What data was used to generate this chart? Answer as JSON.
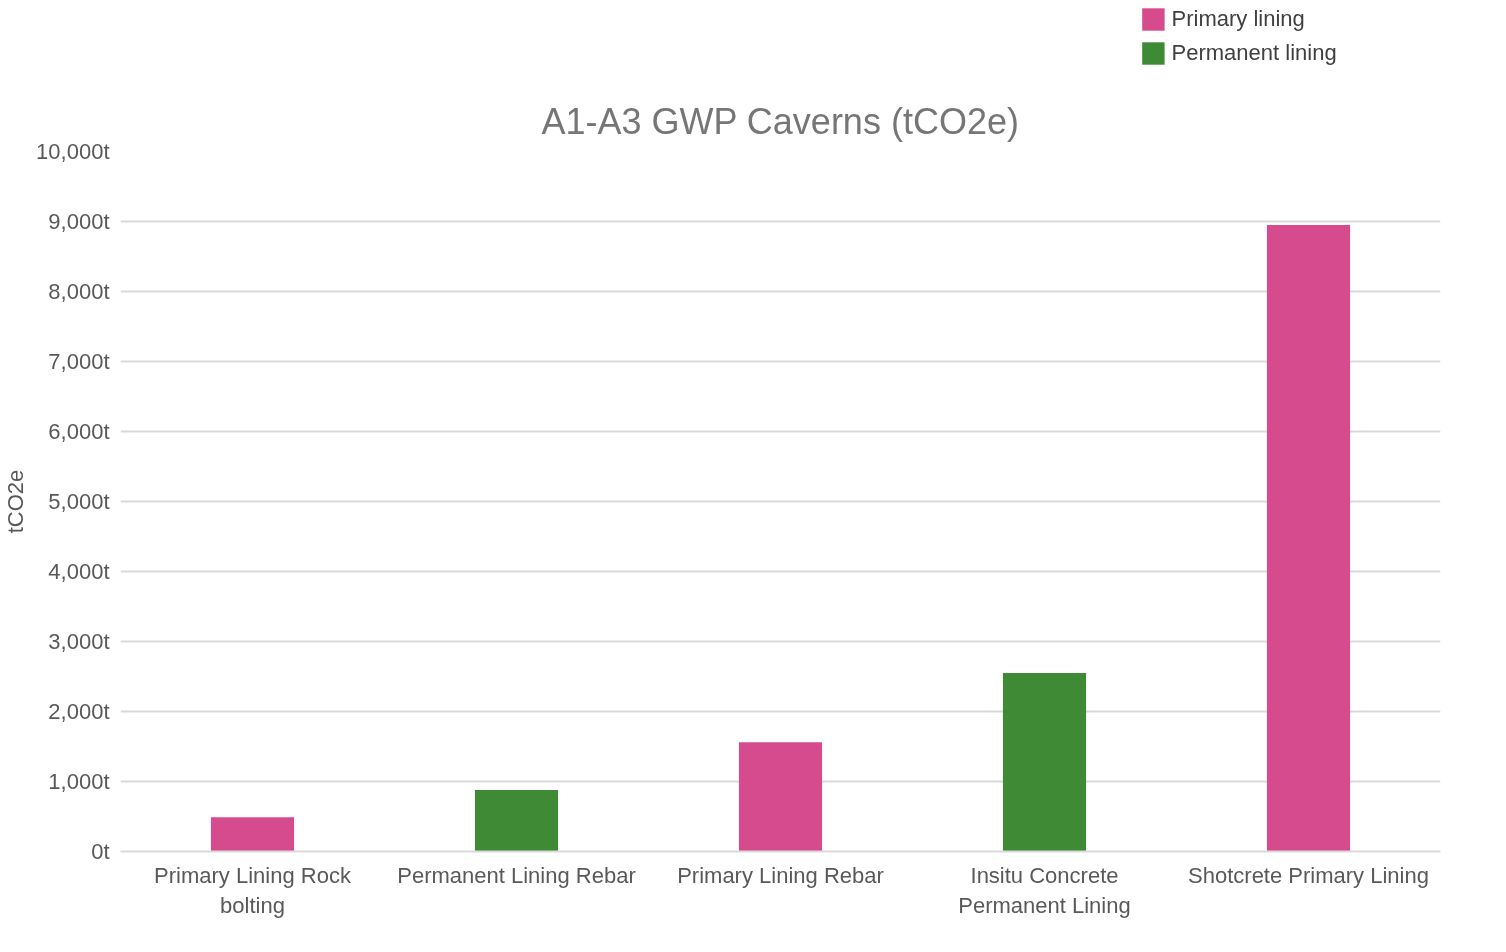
{
  "chart_data": {
    "type": "bar",
    "title": "A1-A3 GWP Caverns (tCO2e)",
    "ylabel": "tCO2e",
    "categories": [
      "Primary Lining Rock bolting",
      "Permanent Lining Rebar",
      "Primary Lining Rebar",
      "Insitu Concrete Permanent Lining",
      "Shotcrete Primary Lining"
    ],
    "series": [
      {
        "name": "Primary lining",
        "color": "#d64a8e",
        "values": [
          490,
          null,
          1560,
          null,
          8950
        ]
      },
      {
        "name": "Permanent lining",
        "color": "#3f8a34",
        "values": [
          null,
          880,
          null,
          2550,
          null
        ]
      }
    ],
    "ylim": [
      0,
      10000
    ],
    "yticks": [
      {
        "value": 0,
        "label": "0t"
      },
      {
        "value": 1000,
        "label": "1,000t"
      },
      {
        "value": 2000,
        "label": "2,000t"
      },
      {
        "value": 3000,
        "label": "3,000t"
      },
      {
        "value": 4000,
        "label": "4,000t"
      },
      {
        "value": 5000,
        "label": "5,000t"
      },
      {
        "value": 6000,
        "label": "6,000t"
      },
      {
        "value": 7000,
        "label": "7,000t"
      },
      {
        "value": 8000,
        "label": "8,000t"
      },
      {
        "value": 9000,
        "label": "9,000t"
      },
      {
        "value": 10000,
        "label": "10,000t"
      }
    ],
    "grid": "y",
    "legend": "top right"
  }
}
